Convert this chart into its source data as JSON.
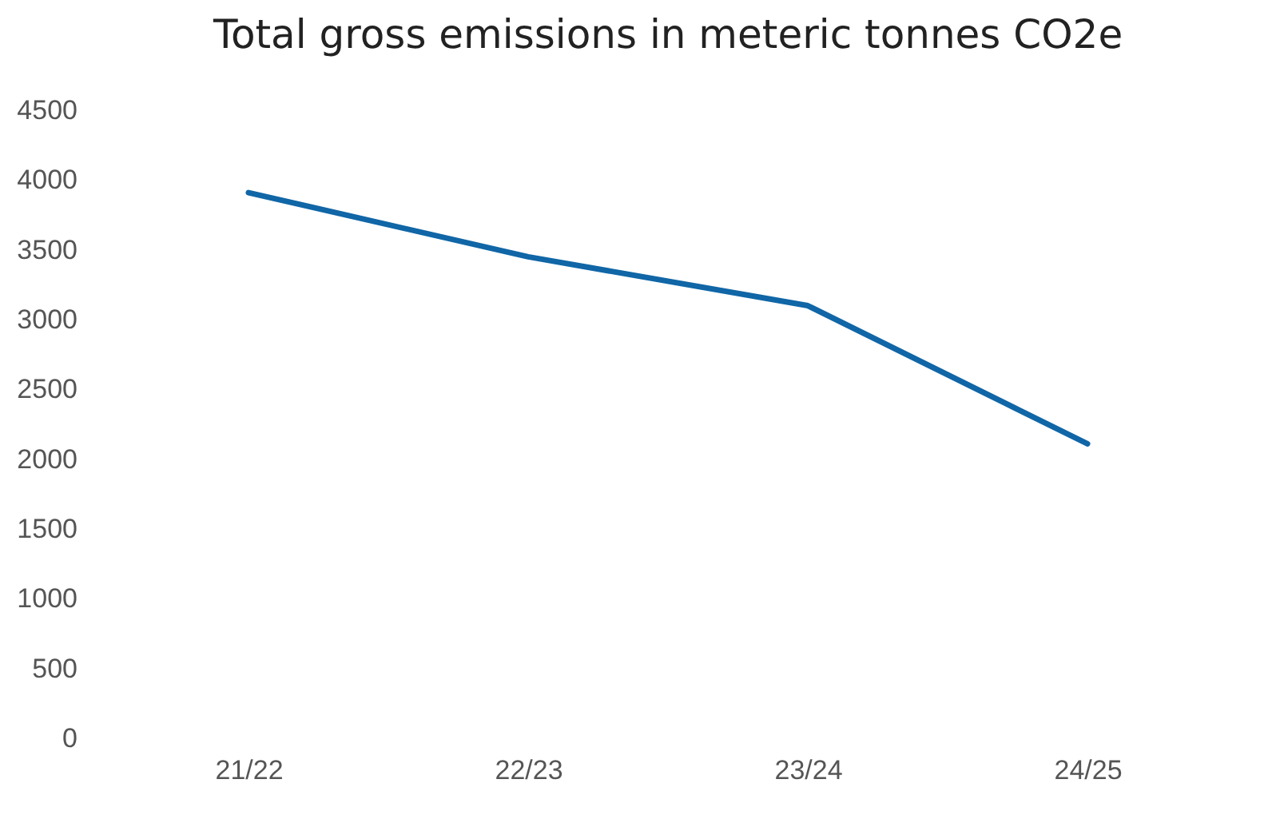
{
  "chart_data": {
    "type": "line",
    "title": "Total gross emissions in meteric tonnes CO2e",
    "categories": [
      "21/22",
      "22/23",
      "23/24",
      "24/25"
    ],
    "series": [
      {
        "color": "#1066a6",
        "values": [
          3910,
          3450,
          3100,
          2110
        ]
      }
    ],
    "ylim": [
      0,
      4500
    ],
    "yticks": [
      0,
      500,
      1000,
      1500,
      2000,
      2500,
      3000,
      3500,
      4000,
      4500
    ],
    "grid": false,
    "legend": false,
    "marker": "none",
    "line_style": "solid"
  }
}
